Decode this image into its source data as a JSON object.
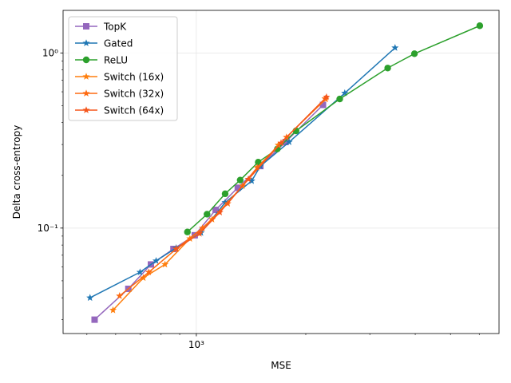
{
  "chart_data": {
    "type": "line",
    "title": "",
    "xlabel": "MSE",
    "ylabel": "Delta cross-entropy",
    "xscale": "log",
    "yscale": "log",
    "xlim": [
      430,
      6800
    ],
    "ylim": [
      0.025,
      1.75
    ],
    "grid": true,
    "legend_position": "top-left",
    "x_ticks": [
      {
        "value": 1000,
        "label": "10³"
      }
    ],
    "y_ticks": [
      {
        "value": 0.1,
        "label": "10⁻¹"
      },
      {
        "value": 1,
        "label": "10⁰"
      }
    ],
    "series": [
      {
        "name": "TopK",
        "color": "#9467bd",
        "marker": "square",
        "points": [
          [
            525,
            0.03
          ],
          [
            650,
            0.045
          ],
          [
            750,
            0.062
          ],
          [
            865,
            0.076
          ],
          [
            990,
            0.091
          ],
          [
            1130,
            0.127
          ],
          [
            1300,
            0.17
          ],
          [
            1500,
            0.226
          ],
          [
            1760,
            0.31
          ],
          [
            2230,
            0.505
          ]
        ]
      },
      {
        "name": "Gated",
        "color": "#1f77b4",
        "marker": "star",
        "points": [
          [
            510,
            0.04
          ],
          [
            700,
            0.056
          ],
          [
            775,
            0.065
          ],
          [
            880,
            0.077
          ],
          [
            1030,
            0.094
          ],
          [
            1200,
            0.14
          ],
          [
            1420,
            0.186
          ],
          [
            1500,
            0.226
          ],
          [
            1800,
            0.31
          ],
          [
            2560,
            0.59
          ],
          [
            3520,
            1.07
          ]
        ]
      },
      {
        "name": "ReLU",
        "color": "#2ca02c",
        "marker": "circle",
        "points": [
          [
            945,
            0.095
          ],
          [
            1070,
            0.12
          ],
          [
            1200,
            0.157
          ],
          [
            1320,
            0.188
          ],
          [
            1480,
            0.238
          ],
          [
            1670,
            0.283
          ],
          [
            1880,
            0.359
          ],
          [
            2480,
            0.546
          ],
          [
            3360,
            0.82
          ],
          [
            3980,
            0.99
          ],
          [
            6020,
            1.43
          ]
        ]
      },
      {
        "name": "Switch (16x)",
        "color": "#ff7f0e",
        "marker": "star",
        "points": [
          [
            590,
            0.034
          ],
          [
            715,
            0.052
          ],
          [
            820,
            0.062
          ],
          [
            960,
            0.087
          ],
          [
            1105,
            0.112
          ],
          [
            1340,
            0.174
          ],
          [
            1680,
            0.298
          ],
          [
            2270,
            0.545
          ]
        ]
      },
      {
        "name": "Switch (32x)",
        "color": "#fe6a10",
        "marker": "star",
        "points": [
          [
            615,
            0.041
          ],
          [
            740,
            0.056
          ],
          [
            880,
            0.076
          ],
          [
            1040,
            0.1
          ],
          [
            1220,
            0.138
          ],
          [
            1470,
            0.222
          ],
          [
            1770,
            0.33
          ],
          [
            2260,
            0.548
          ]
        ]
      },
      {
        "name": "Switch (64x)",
        "color": "#f5561c",
        "marker": "star",
        "points": [
          [
            880,
            0.076
          ],
          [
            1020,
            0.093
          ],
          [
            1160,
            0.123
          ],
          [
            1390,
            0.19
          ],
          [
            1710,
            0.306
          ],
          [
            2280,
            0.56
          ]
        ]
      }
    ]
  }
}
